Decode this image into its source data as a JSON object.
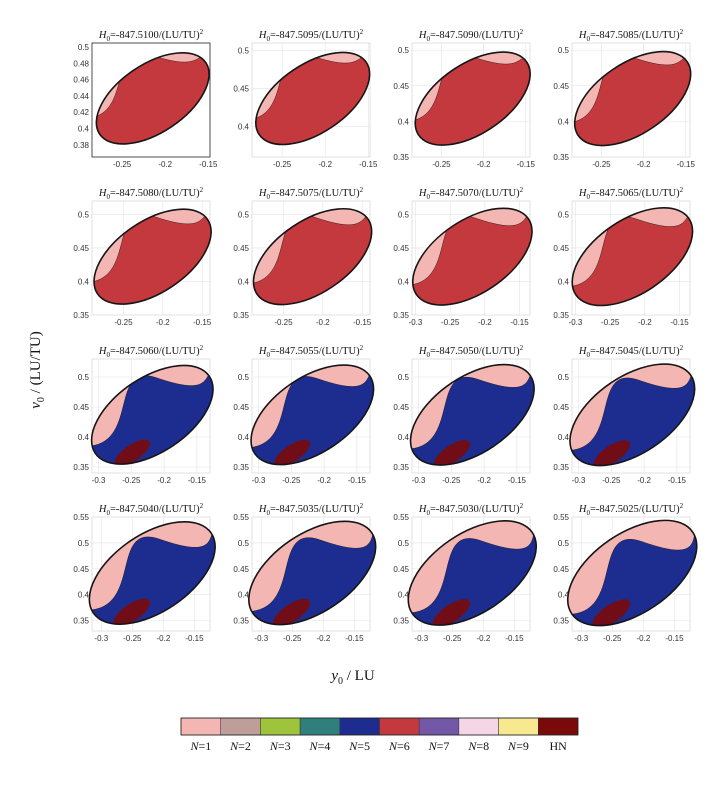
{
  "chart_data": {
    "type": "heatmap",
    "title": "",
    "xlabel_var": "y",
    "xlabel_sub": "0",
    "xlabel_unit": " / LU",
    "ylabel_var": "v",
    "ylabel_sub": "0",
    "ylabel_unit": " / (LU/TU)",
    "energy_prefix": "H",
    "energy_sub": "0",
    "energy_unit": "/(LU/TU)",
    "energy_exp": "2",
    "panels": [
      {
        "H0": "=-847.5100",
        "xlim": [
          -0.285,
          -0.148
        ],
        "ylim": [
          0.365,
          0.505
        ],
        "xticks": [
          "-0.25",
          "-0.2",
          "-0.15"
        ],
        "xtickv": [
          -0.25,
          -0.2,
          -0.15
        ],
        "yticks": [
          "0.38",
          "0.4",
          "0.42",
          "0.44",
          "0.46",
          "0.48",
          "0.5"
        ],
        "ytickv": [
          0.38,
          0.4,
          0.42,
          0.44,
          0.46,
          0.48,
          0.5
        ],
        "grid": false,
        "box": true
      },
      {
        "H0": "=-847.5095",
        "xlim": [
          -0.285,
          -0.148
        ],
        "ylim": [
          0.36,
          0.51
        ],
        "xticks": [
          "-0.25",
          "-0.2",
          "-0.15"
        ],
        "xtickv": [
          -0.25,
          -0.2,
          -0.15
        ],
        "yticks": [
          "0.4",
          "0.45",
          "0.5"
        ],
        "ytickv": [
          0.4,
          0.45,
          0.5
        ],
        "grid": true,
        "box": false
      },
      {
        "H0": "=-847.5090",
        "xlim": [
          -0.285,
          -0.145
        ],
        "ylim": [
          0.35,
          0.51
        ],
        "xticks": [
          "-0.25",
          "-0.2",
          "-0.15"
        ],
        "xtickv": [
          -0.25,
          -0.2,
          -0.15
        ],
        "yticks": [
          "0.35",
          "0.4",
          "0.45",
          "0.5"
        ],
        "ytickv": [
          0.35,
          0.4,
          0.45,
          0.5
        ],
        "grid": true,
        "box": false
      },
      {
        "H0": "=-847.5085",
        "xlim": [
          -0.285,
          -0.145
        ],
        "ylim": [
          0.35,
          0.51
        ],
        "xticks": [
          "-0.25",
          "-0.2",
          "-0.15"
        ],
        "xtickv": [
          -0.25,
          -0.2,
          -0.15
        ],
        "yticks": [
          "0.35",
          "0.4",
          "0.45",
          "0.5"
        ],
        "ytickv": [
          0.35,
          0.4,
          0.45,
          0.5
        ],
        "grid": true,
        "box": false
      },
      {
        "H0": "=-847.5080",
        "xlim": [
          -0.29,
          -0.14
        ],
        "ylim": [
          0.35,
          0.52
        ],
        "xticks": [
          "-0.25",
          "-0.2",
          "-0.15"
        ],
        "xtickv": [
          -0.25,
          -0.2,
          -0.15
        ],
        "yticks": [
          "0.35",
          "0.4",
          "0.45",
          "0.5"
        ],
        "ytickv": [
          0.35,
          0.4,
          0.45,
          0.5
        ],
        "grid": true,
        "box": false
      },
      {
        "H0": "=-847.5075",
        "xlim": [
          -0.29,
          -0.14
        ],
        "ylim": [
          0.35,
          0.52
        ],
        "xticks": [
          "-0.25",
          "-0.2",
          "-0.15"
        ],
        "xtickv": [
          -0.25,
          -0.2,
          -0.15
        ],
        "yticks": [
          "0.35",
          "0.4",
          "0.45",
          "0.5"
        ],
        "ytickv": [
          0.35,
          0.4,
          0.45,
          0.5
        ],
        "grid": true,
        "box": false
      },
      {
        "H0": "=-847.5070",
        "xlim": [
          -0.305,
          -0.135
        ],
        "ylim": [
          0.35,
          0.52
        ],
        "xticks": [
          "-0.3",
          "-0.25",
          "-0.2",
          "-0.15"
        ],
        "xtickv": [
          -0.3,
          -0.25,
          -0.2,
          -0.15
        ],
        "yticks": [
          "0.35",
          "0.4",
          "0.45",
          "0.5"
        ],
        "ytickv": [
          0.35,
          0.4,
          0.45,
          0.5
        ],
        "grid": true,
        "box": false
      },
      {
        "H0": "=-847.5065",
        "xlim": [
          -0.305,
          -0.135
        ],
        "ylim": [
          0.35,
          0.52
        ],
        "xticks": [
          "-0.3",
          "-0.25",
          "-0.2",
          "-0.15"
        ],
        "xtickv": [
          -0.3,
          -0.25,
          -0.2,
          -0.15
        ],
        "yticks": [
          "0.35",
          "0.4",
          "0.45",
          "0.5"
        ],
        "ytickv": [
          0.35,
          0.4,
          0.45,
          0.5
        ],
        "grid": true,
        "box": false
      },
      {
        "H0": "=-847.5060",
        "xlim": [
          -0.31,
          -0.13
        ],
        "ylim": [
          0.34,
          0.53
        ],
        "xticks": [
          "-0.3",
          "-0.25",
          "-0.2",
          "-0.15"
        ],
        "xtickv": [
          -0.3,
          -0.25,
          -0.2,
          -0.15
        ],
        "yticks": [
          "0.35",
          "0.4",
          "0.45",
          "0.5"
        ],
        "ytickv": [
          0.35,
          0.4,
          0.45,
          0.5
        ],
        "grid": true,
        "box": false
      },
      {
        "H0": "=-847.5055",
        "xlim": [
          -0.31,
          -0.13
        ],
        "ylim": [
          0.34,
          0.53
        ],
        "xticks": [
          "-0.3",
          "-0.25",
          "-0.2",
          "-0.15"
        ],
        "xtickv": [
          -0.3,
          -0.25,
          -0.2,
          -0.15
        ],
        "yticks": [
          "0.35",
          "0.4",
          "0.45",
          "0.5"
        ],
        "ytickv": [
          0.35,
          0.4,
          0.45,
          0.5
        ],
        "grid": true,
        "box": false
      },
      {
        "H0": "=-847.5050",
        "xlim": [
          -0.31,
          -0.13
        ],
        "ylim": [
          0.34,
          0.53
        ],
        "xticks": [
          "-0.3",
          "-0.25",
          "-0.2",
          "-0.15"
        ],
        "xtickv": [
          -0.3,
          -0.25,
          -0.2,
          -0.15
        ],
        "yticks": [
          "0.35",
          "0.4",
          "0.45",
          "0.5"
        ],
        "ytickv": [
          0.35,
          0.4,
          0.45,
          0.5
        ],
        "grid": true,
        "box": false
      },
      {
        "H0": "=-847.5045",
        "xlim": [
          -0.31,
          -0.13
        ],
        "ylim": [
          0.34,
          0.53
        ],
        "xticks": [
          "-0.3",
          "-0.25",
          "-0.2",
          "-0.15"
        ],
        "xtickv": [
          -0.3,
          -0.25,
          -0.2,
          -0.15
        ],
        "yticks": [
          "0.35",
          "0.4",
          "0.45",
          "0.5"
        ],
        "ytickv": [
          0.35,
          0.4,
          0.45,
          0.5
        ],
        "grid": true,
        "box": false
      },
      {
        "H0": "=-847.5040",
        "xlim": [
          -0.315,
          -0.125
        ],
        "ylim": [
          0.33,
          0.55
        ],
        "xticks": [
          "-0.3",
          "-0.25",
          "-0.2",
          "-0.15"
        ],
        "xtickv": [
          -0.3,
          -0.25,
          -0.2,
          -0.15
        ],
        "yticks": [
          "0.35",
          "0.4",
          "0.45",
          "0.5",
          "0.55"
        ],
        "ytickv": [
          0.35,
          0.4,
          0.45,
          0.5,
          0.55
        ],
        "grid": true,
        "box": false
      },
      {
        "H0": "=-847.5035",
        "xlim": [
          -0.315,
          -0.125
        ],
        "ylim": [
          0.33,
          0.55
        ],
        "xticks": [
          "-0.3",
          "-0.25",
          "-0.2",
          "-0.15"
        ],
        "xtickv": [
          -0.3,
          -0.25,
          -0.2,
          -0.15
        ],
        "yticks": [
          "0.35",
          "0.4",
          "0.45",
          "0.5",
          "0.55"
        ],
        "ytickv": [
          0.35,
          0.4,
          0.45,
          0.5,
          0.55
        ],
        "grid": true,
        "box": false
      },
      {
        "H0": "=-847.5030",
        "xlim": [
          -0.315,
          -0.125
        ],
        "ylim": [
          0.33,
          0.55
        ],
        "xticks": [
          "-0.3",
          "-0.25",
          "-0.2",
          "-0.15"
        ],
        "xtickv": [
          -0.3,
          -0.25,
          -0.2,
          -0.15
        ],
        "yticks": [
          "0.35",
          "0.4",
          "0.45",
          "0.5",
          "0.55"
        ],
        "ytickv": [
          0.35,
          0.4,
          0.45,
          0.5,
          0.55
        ],
        "grid": true,
        "box": false
      },
      {
        "H0": "=-847.5025",
        "xlim": [
          -0.315,
          -0.125
        ],
        "ylim": [
          0.33,
          0.55
        ],
        "xticks": [
          "-0.3",
          "-0.25",
          "-0.2",
          "-0.15"
        ],
        "xtickv": [
          -0.3,
          -0.25,
          -0.2,
          -0.15
        ],
        "yticks": [
          "0.35",
          "0.4",
          "0.45",
          "0.5",
          "0.55"
        ],
        "ytickv": [
          0.35,
          0.4,
          0.45,
          0.5,
          0.55
        ],
        "grid": true,
        "box": false
      }
    ],
    "legend": {
      "placement": "bottom",
      "entries": [
        {
          "var": "N",
          "label": "=1",
          "color": "#f4b6b2"
        },
        {
          "var": "N",
          "label": "=2",
          "color": "#bf9e9a"
        },
        {
          "var": "N",
          "label": "=3",
          "color": "#9ec43c"
        },
        {
          "var": "N",
          "label": "=4",
          "color": "#2f7f7c"
        },
        {
          "var": "N",
          "label": "=5",
          "color": "#1c2d8f"
        },
        {
          "var": "N",
          "label": "=6",
          "color": "#c4393e"
        },
        {
          "var": "N",
          "label": "=7",
          "color": "#7458a8"
        },
        {
          "var": "N",
          "label": "=8",
          "color": "#f5d6e6"
        },
        {
          "var": "N",
          "label": "=9",
          "color": "#f6e98f"
        },
        {
          "var": "",
          "label": "HN",
          "color": "#7a0a0a"
        }
      ]
    }
  }
}
